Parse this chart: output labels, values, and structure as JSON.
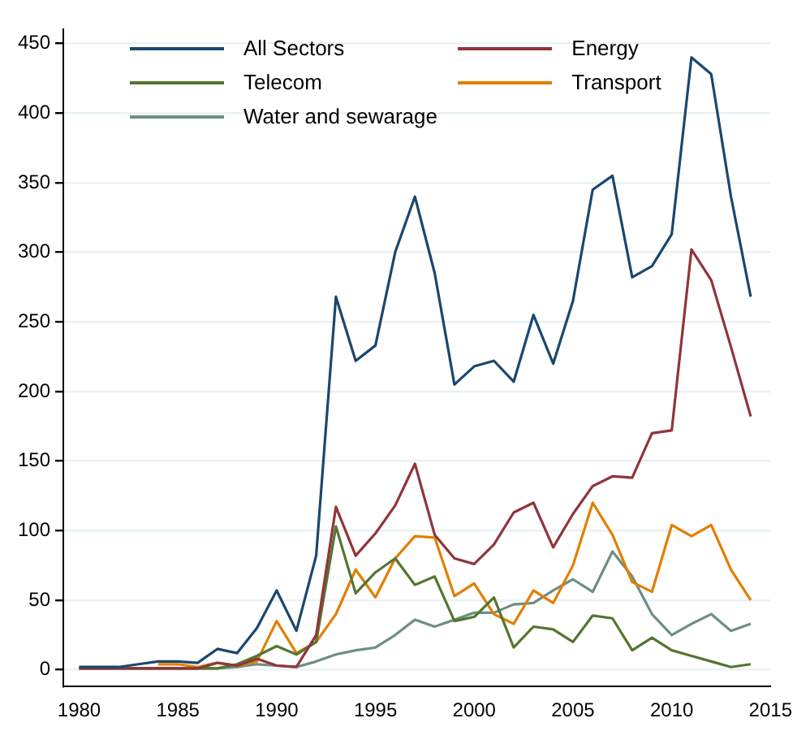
{
  "chart_data": {
    "type": "line",
    "x": [
      1980,
      1981,
      1982,
      1983,
      1984,
      1985,
      1986,
      1987,
      1988,
      1989,
      1990,
      1991,
      1992,
      1993,
      1994,
      1995,
      1996,
      1997,
      1998,
      1999,
      2000,
      2001,
      2002,
      2003,
      2004,
      2005,
      2006,
      2007,
      2008,
      2009,
      2010,
      2011,
      2012,
      2013,
      2014
    ],
    "series": [
      {
        "name": "All Sectors",
        "color": "#1a476f",
        "values": [
          2,
          2,
          2,
          4,
          6,
          6,
          5,
          15,
          12,
          30,
          57,
          28,
          82,
          268,
          222,
          233,
          300,
          340,
          285,
          205,
          218,
          222,
          207,
          255,
          220,
          265,
          345,
          355,
          282,
          290,
          313,
          440,
          428,
          340,
          268
        ]
      },
      {
        "name": "Energy",
        "color": "#90353b",
        "values": [
          1,
          1,
          1,
          1,
          1,
          1,
          1,
          5,
          3,
          8,
          3,
          2,
          25,
          117,
          82,
          98,
          118,
          148,
          97,
          80,
          76,
          90,
          113,
          120,
          88,
          112,
          132,
          139,
          138,
          170,
          172,
          302,
          280,
          232,
          182
        ]
      },
      {
        "name": "Telecom",
        "color": "#55752f",
        "values": [
          1,
          1,
          1,
          1,
          1,
          1,
          1,
          1,
          4,
          10,
          17,
          11,
          20,
          103,
          55,
          70,
          80,
          61,
          67,
          35,
          38,
          52,
          16,
          31,
          29,
          20,
          39,
          37,
          14,
          23,
          14,
          10,
          6,
          2,
          4
        ]
      },
      {
        "name": "Transport",
        "color": "#e37e00",
        "values": [
          null,
          null,
          null,
          null,
          4,
          4,
          2,
          5,
          3,
          6,
          35,
          12,
          20,
          40,
          72,
          52,
          80,
          96,
          95,
          53,
          62,
          40,
          33,
          57,
          48,
          75,
          120,
          97,
          63,
          56,
          104,
          96,
          104,
          72,
          50
        ]
      },
      {
        "name": "Water and sewarage",
        "color": "#6e8e84",
        "values": [
          1,
          1,
          1,
          1,
          1,
          1,
          1,
          1,
          2,
          4,
          3,
          2,
          6,
          11,
          14,
          16,
          25,
          36,
          31,
          36,
          41,
          41,
          47,
          48,
          57,
          65,
          56,
          85,
          67,
          40,
          25,
          33,
          40,
          28,
          33
        ]
      }
    ],
    "xlim": [
      1979.2,
      2015
    ],
    "xticks": [
      1980,
      1985,
      1990,
      1995,
      2000,
      2005,
      2010,
      2015
    ],
    "ylim": [
      -12,
      460
    ],
    "yticks": [
      0,
      50,
      100,
      150,
      200,
      250,
      300,
      350,
      400,
      450
    ],
    "grid": "y",
    "legend": "top",
    "marker": "none",
    "line_style": "solid"
  }
}
